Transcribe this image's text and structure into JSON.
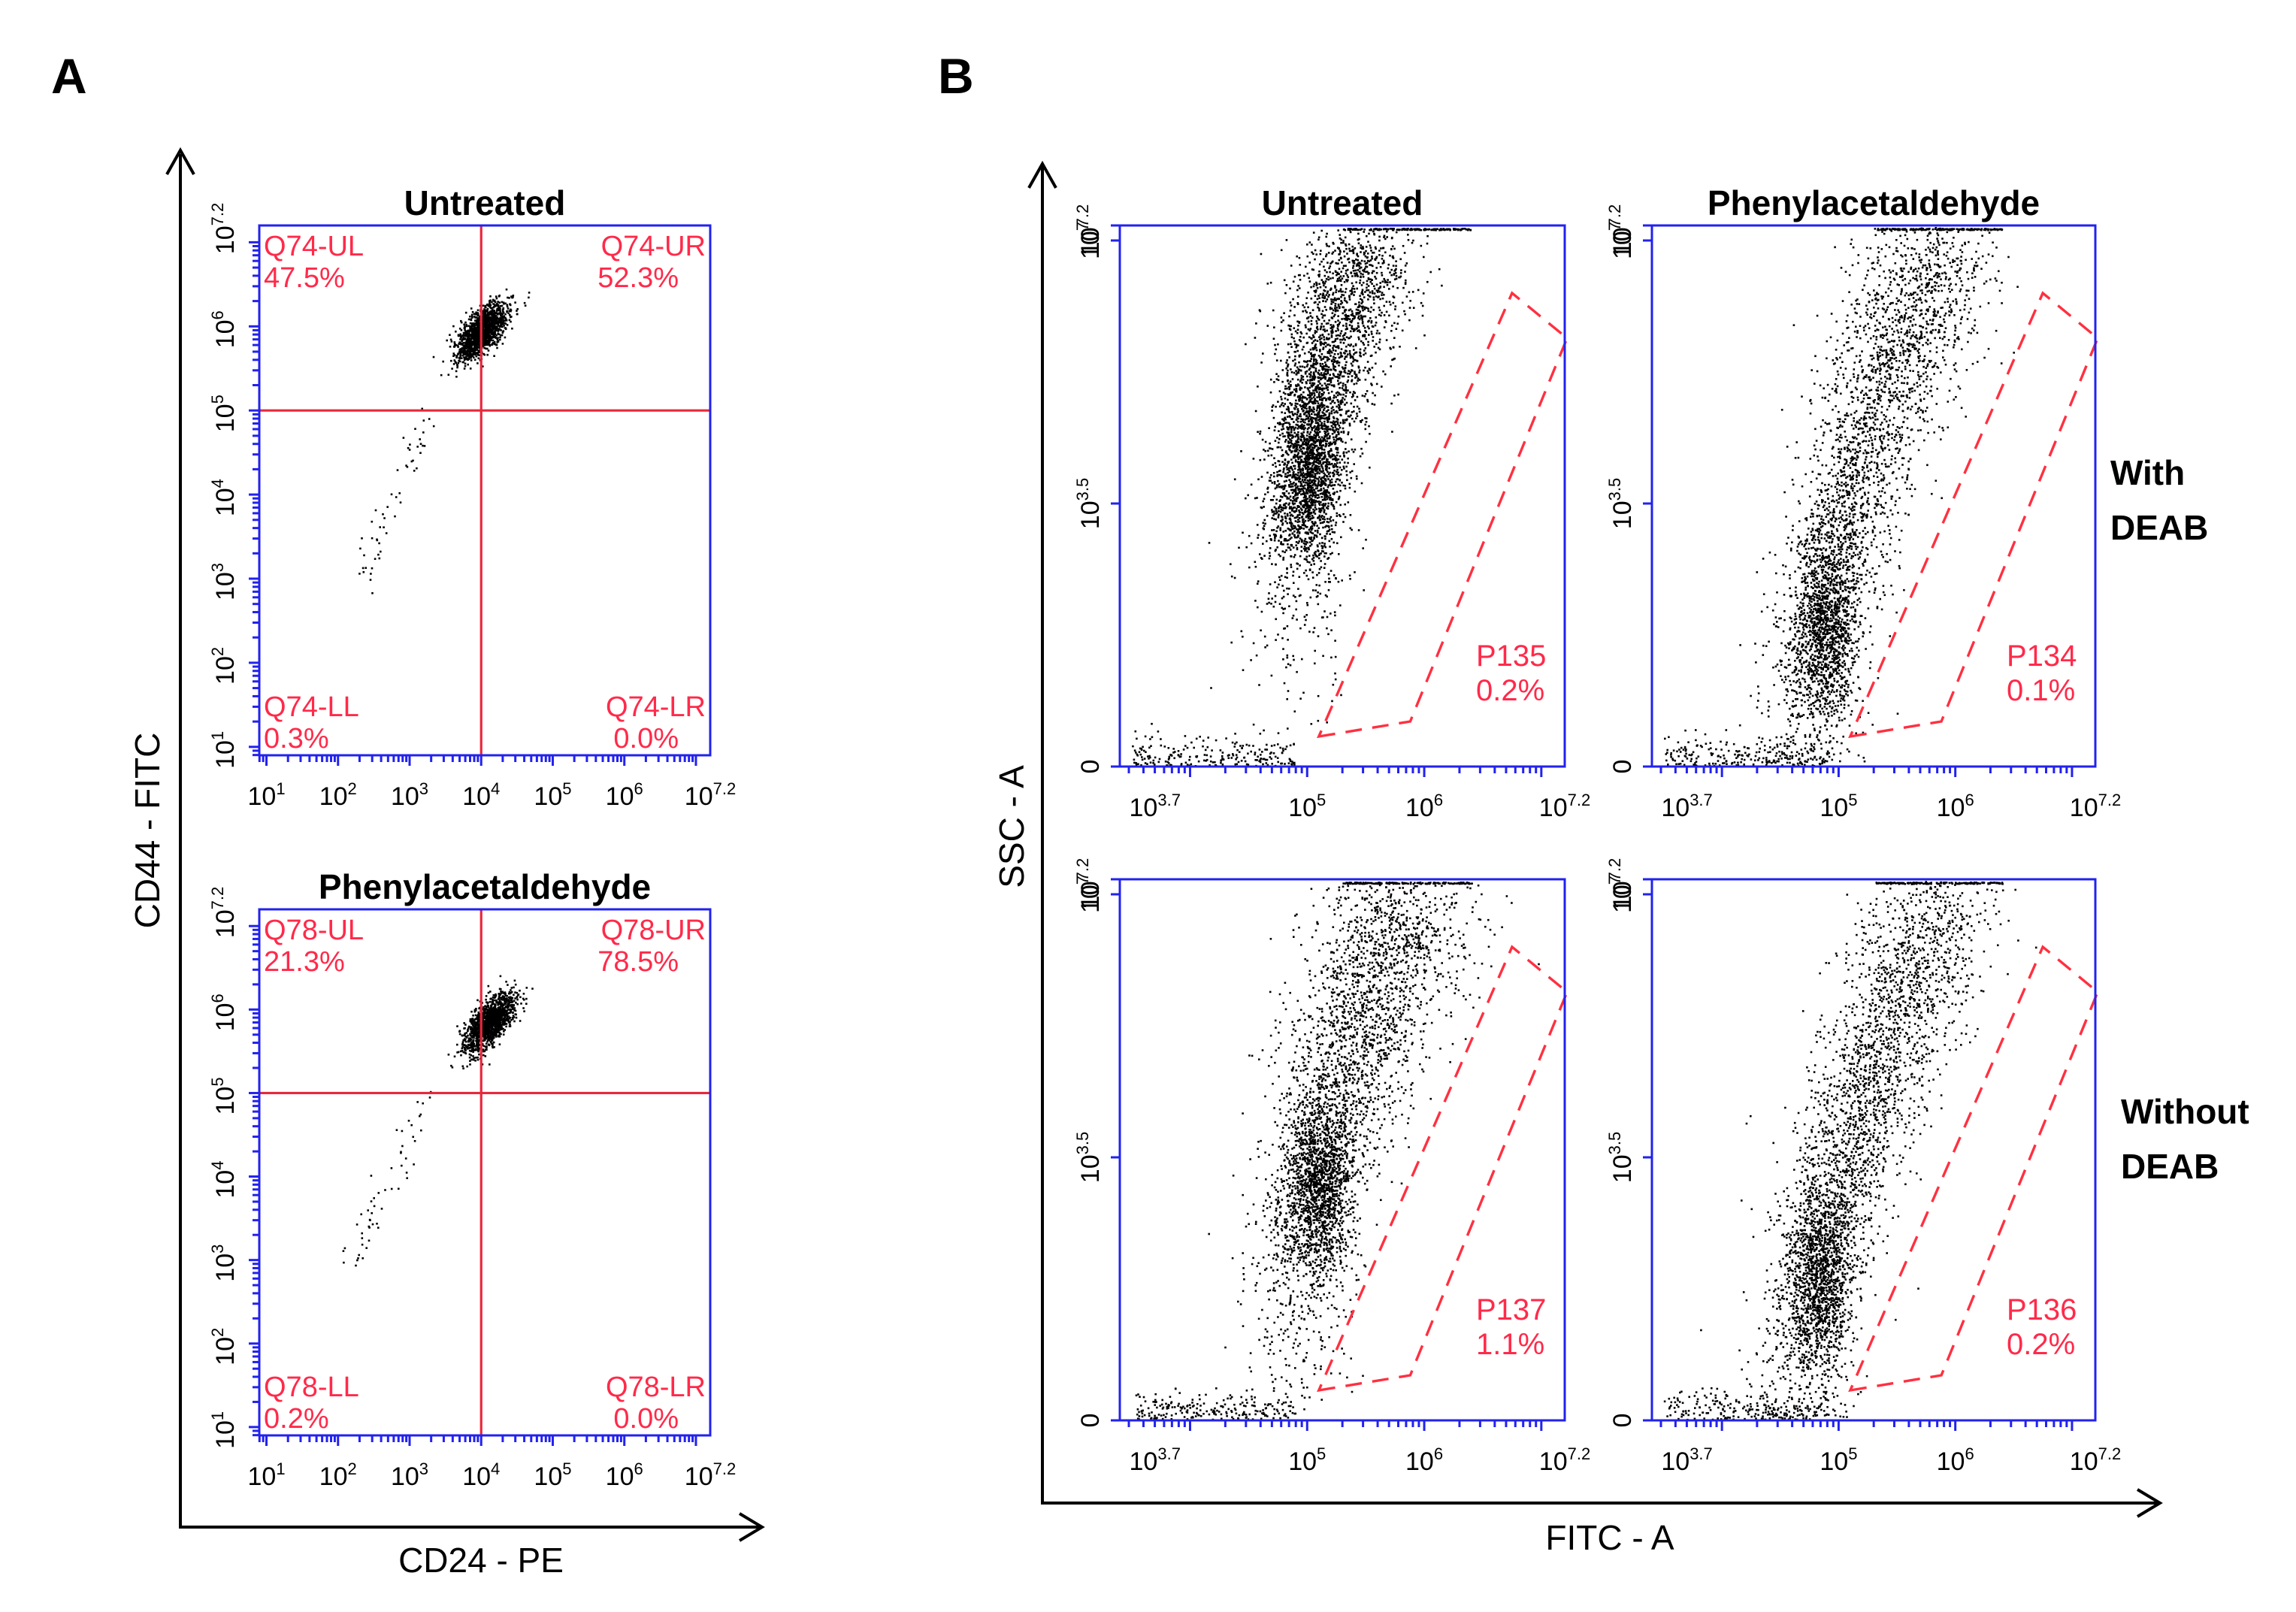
{
  "panels": {
    "a": "A",
    "b": "B"
  },
  "panel_a": {
    "y_axis_title": "CD44 - FITC",
    "x_axis_title": "CD24 - PE",
    "y_ticks": [
      {
        "base": "10",
        "exp": "1",
        "pos": 1
      },
      {
        "base": "10",
        "exp": "2",
        "pos": 2
      },
      {
        "base": "10",
        "exp": "3",
        "pos": 3
      },
      {
        "base": "10",
        "exp": "4",
        "pos": 4
      },
      {
        "base": "10",
        "exp": "5",
        "pos": 5
      },
      {
        "base": "10",
        "exp": "6",
        "pos": 6
      },
      {
        "base": "10",
        "exp": "7.2",
        "pos": 7.2
      }
    ],
    "x_ticks": [
      {
        "base": "10",
        "exp": "1",
        "pos": 1
      },
      {
        "base": "10",
        "exp": "2",
        "pos": 2
      },
      {
        "base": "10",
        "exp": "3",
        "pos": 3
      },
      {
        "base": "10",
        "exp": "4",
        "pos": 4
      },
      {
        "base": "10",
        "exp": "5",
        "pos": 5
      },
      {
        "base": "10",
        "exp": "6",
        "pos": 6
      },
      {
        "base": "10",
        "exp": "7.2",
        "pos": 7.2
      }
    ]
  },
  "panel_b": {
    "y_axis_title": "SSC - A",
    "x_axis_title": "FITC - A",
    "rows": [
      {
        "line1": "With",
        "line2": "DEAB"
      },
      {
        "line1": "Without",
        "line2": "DEAB"
      }
    ],
    "y_ticks": [
      {
        "base": "0",
        "exp": "",
        "pos": 0
      },
      {
        "base": "10",
        "exp": "3.5",
        "pos": 3.5
      },
      {
        "base": "10",
        "exp": "7",
        "pos": 7
      },
      {
        "base": "10",
        "exp": "7.2",
        "pos": 7.2
      }
    ],
    "x_ticks": [
      {
        "base": "10",
        "exp": "3.7",
        "pos": 3.7
      },
      {
        "base": "10",
        "exp": "5",
        "pos": 5
      },
      {
        "base": "10",
        "exp": "6",
        "pos": 6
      },
      {
        "base": "10",
        "exp": "7.2",
        "pos": 7.2
      }
    ]
  },
  "chart_data": [
    {
      "type": "scatter",
      "panel": "A",
      "title": "Untreated",
      "xlabel": "CD24 - PE",
      "ylabel": "CD44 - FITC",
      "xlim": [
        0.9,
        7.2
      ],
      "ylim": [
        0.9,
        7.2
      ],
      "quadrant_threshold": {
        "x": 4,
        "y": 5
      },
      "quadrants": [
        {
          "name": "Q74-UL",
          "value": "47.5%"
        },
        {
          "name": "Q74-UR",
          "value": "52.3%"
        },
        {
          "name": "Q74-LL",
          "value": "0.3%"
        },
        {
          "name": "Q74-LR",
          "value": "0.0%"
        }
      ],
      "cloud": {
        "cx": 4.0,
        "cy": 5.95,
        "sd_major": 0.22,
        "sd_minor": 0.1,
        "n": 1500
      },
      "tail": {
        "from": [
          2.3,
          3.0
        ],
        "to": [
          3.3,
          4.9
        ],
        "n": 55
      }
    },
    {
      "type": "scatter",
      "panel": "A",
      "title": "Phenylacetaldehyde",
      "xlabel": "CD24 - PE",
      "ylabel": "CD44 - FITC",
      "xlim": [
        0.9,
        7.2
      ],
      "ylim": [
        0.9,
        7.2
      ],
      "quadrant_threshold": {
        "x": 4,
        "y": 5
      },
      "quadrants": [
        {
          "name": "Q78-UL",
          "value": "21.3%"
        },
        {
          "name": "Q78-UR",
          "value": "78.5%"
        },
        {
          "name": "Q78-LL",
          "value": "0.2%"
        },
        {
          "name": "Q78-LR",
          "value": "0.0%"
        }
      ],
      "cloud": {
        "cx": 4.1,
        "cy": 5.85,
        "sd_major": 0.22,
        "sd_minor": 0.1,
        "n": 1500
      },
      "tail": {
        "from": [
          2.1,
          2.9
        ],
        "to": [
          3.3,
          4.9
        ],
        "n": 55
      }
    },
    {
      "type": "scatter",
      "panel": "B",
      "title": "Untreated",
      "row": "With DEAB",
      "xlabel": "FITC - A",
      "ylabel": "SSC - A",
      "xlim": [
        3.4,
        7.2
      ],
      "ylim": [
        0,
        7.2
      ],
      "gate": {
        "name": "P135",
        "value": "0.2%",
        "polygon": [
          [
            5.1,
            0.4
          ],
          [
            5.88,
            0.6
          ],
          [
            7.22,
            5.7
          ],
          [
            6.75,
            6.3
          ]
        ]
      },
      "cloud": {
        "base_x": 4.9,
        "base_y": 3.1,
        "top_x": 5.45,
        "top_y": 7.0,
        "spread": 0.17,
        "n": 3000
      }
    },
    {
      "type": "scatter",
      "panel": "B",
      "title": "Phenylacetaldehyde",
      "row": "With DEAB",
      "xlabel": "FITC - A",
      "ylabel": "SSC - A",
      "xlim": [
        3.4,
        7.2
      ],
      "ylim": [
        0,
        7.2
      ],
      "gate": {
        "name": "P134",
        "value": "0.1%",
        "polygon": [
          [
            5.1,
            0.4
          ],
          [
            5.88,
            0.6
          ],
          [
            7.22,
            5.7
          ],
          [
            6.75,
            6.3
          ]
        ]
      },
      "cloud": {
        "base_x": 4.75,
        "base_y": 1.0,
        "top_x": 5.85,
        "top_y": 7.0,
        "spread": 0.2,
        "n": 3000
      }
    },
    {
      "type": "scatter",
      "panel": "B",
      "title": "Untreated",
      "row": "Without DEAB",
      "xlabel": "FITC - A",
      "ylabel": "SSC - A",
      "xlim": [
        3.4,
        7.2
      ],
      "ylim": [
        0,
        7.2
      ],
      "gate": {
        "name": "P137",
        "value": "1.1%",
        "polygon": [
          [
            5.1,
            0.4
          ],
          [
            5.88,
            0.6
          ],
          [
            7.22,
            5.7
          ],
          [
            6.75,
            6.3
          ]
        ]
      },
      "cloud": {
        "base_x": 4.95,
        "base_y": 2.2,
        "top_x": 5.85,
        "top_y": 7.0,
        "spread": 0.22,
        "n": 3000
      }
    },
    {
      "type": "scatter",
      "panel": "B",
      "title": "Phenylacetaldehyde",
      "row": "Without DEAB",
      "xlabel": "FITC - A",
      "ylabel": "SSC - A",
      "xlim": [
        3.4,
        7.2
      ],
      "ylim": [
        0,
        7.2
      ],
      "gate": {
        "name": "P136",
        "value": "0.2%",
        "polygon": [
          [
            5.1,
            0.4
          ],
          [
            5.88,
            0.6
          ],
          [
            7.22,
            5.7
          ],
          [
            6.75,
            6.3
          ]
        ]
      },
      "cloud": {
        "base_x": 4.7,
        "base_y": 1.0,
        "top_x": 5.85,
        "top_y": 7.0,
        "spread": 0.2,
        "n": 3000
      }
    }
  ]
}
